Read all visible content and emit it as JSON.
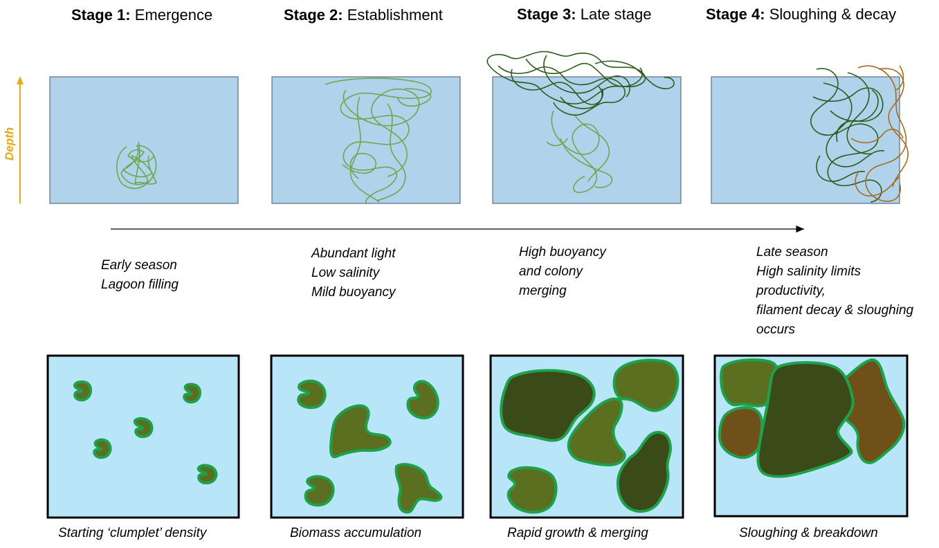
{
  "stages": [
    {
      "num": "Stage 1:",
      "name": "Emergence",
      "desc": "Early season\nLagoon filling",
      "caption": "Starting ‘clumplet’  density"
    },
    {
      "num": "Stage 2:",
      "name": "Establishment",
      "desc": "Abundant light\nLow salinity\nMild buoyancy",
      "caption": "Biomass accumulation"
    },
    {
      "num": "Stage 3:",
      "name": "Late stage",
      "desc": "High buoyancy\nand colony\nmerging",
      "caption": "Rapid growth & merging"
    },
    {
      "num": "Stage 4:",
      "name": "Sloughing & decay",
      "desc": "Late season\nHigh salinity limits\nproductivity,\nfilament decay & sloughing\noccurs",
      "caption": "Sloughing & breakdown"
    }
  ],
  "axis": {
    "depth_label": "Depth"
  },
  "colors": {
    "water_panel": "#b0d2ea",
    "water_top_view": "#b8e6f8",
    "filament_light": "#6aa84f",
    "filament_dark": "#2e5a1c",
    "filament_decay": "#a66a1c",
    "mat_outline": "#1fa04a",
    "mat_olive": "#5a7020",
    "mat_dark": "#3a4a18",
    "mat_brown": "#6e5018",
    "depth_arrow": "#e8a81a"
  }
}
